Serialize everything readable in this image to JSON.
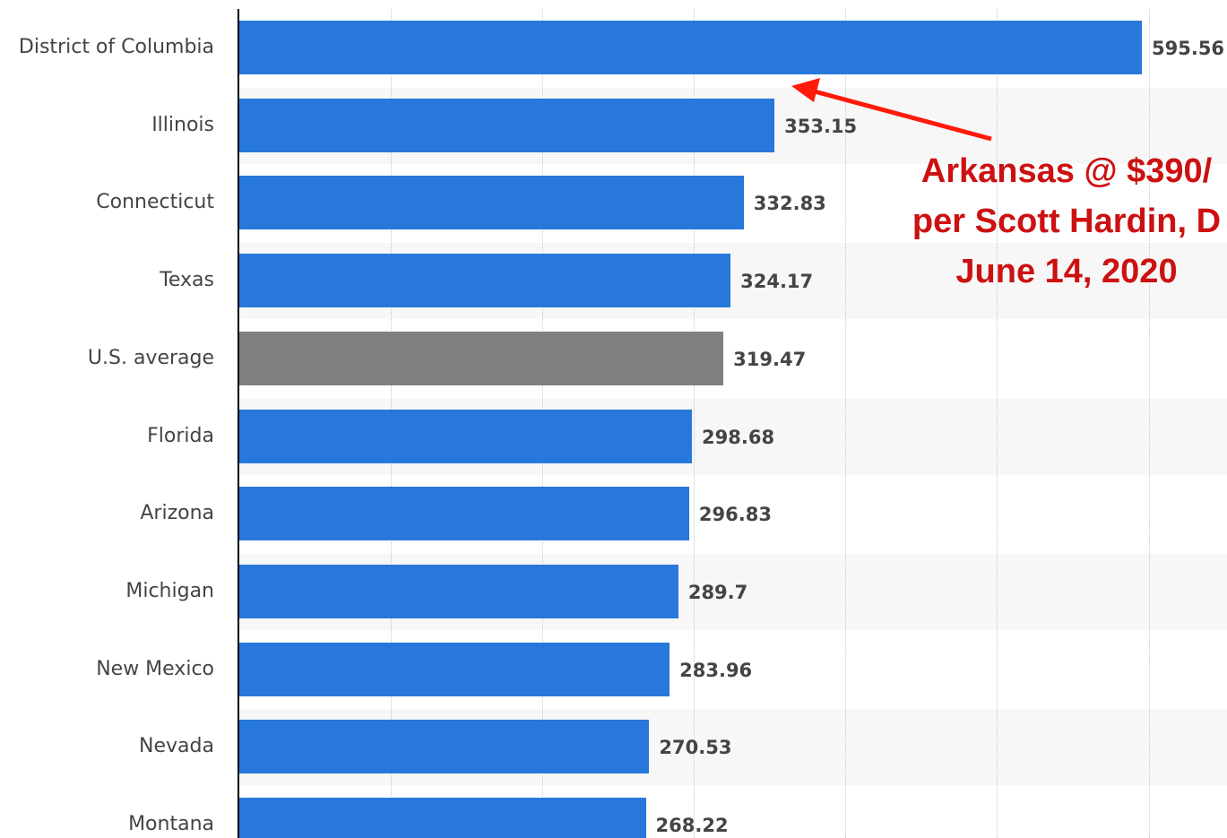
{
  "chart_data": {
    "type": "bar",
    "orientation": "horizontal",
    "categories": [
      "District of Columbia",
      "Illinois",
      "Connecticut",
      "Texas",
      "U.S. average",
      "Florida",
      "Arizona",
      "Michigan",
      "New Mexico",
      "Nevada",
      "Montana"
    ],
    "values": [
      595.56,
      353.15,
      332.83,
      324.17,
      319.47,
      298.68,
      296.83,
      289.7,
      283.96,
      270.53,
      268.22
    ],
    "value_labels": [
      "595.56",
      "353.15",
      "332.83",
      "324.17",
      "319.47",
      "298.68",
      "296.83",
      "289.7",
      "283.96",
      "270.53",
      "268.22"
    ],
    "xlim": [
      0,
      650
    ],
    "gridlines": [
      100,
      200,
      300,
      400,
      500,
      600
    ],
    "grid": true,
    "colors": {
      "bar": "#2878dc",
      "highlight_bar": "#7f7f7f",
      "annotation": "#cc1111"
    },
    "highlight_category": "U.S. average",
    "annotation": {
      "lines": [
        "Arkansas @ $390/",
        "per Scott Hardin, D",
        "June 14, 2020"
      ],
      "arrow_target_category": "District of Columbia"
    }
  }
}
